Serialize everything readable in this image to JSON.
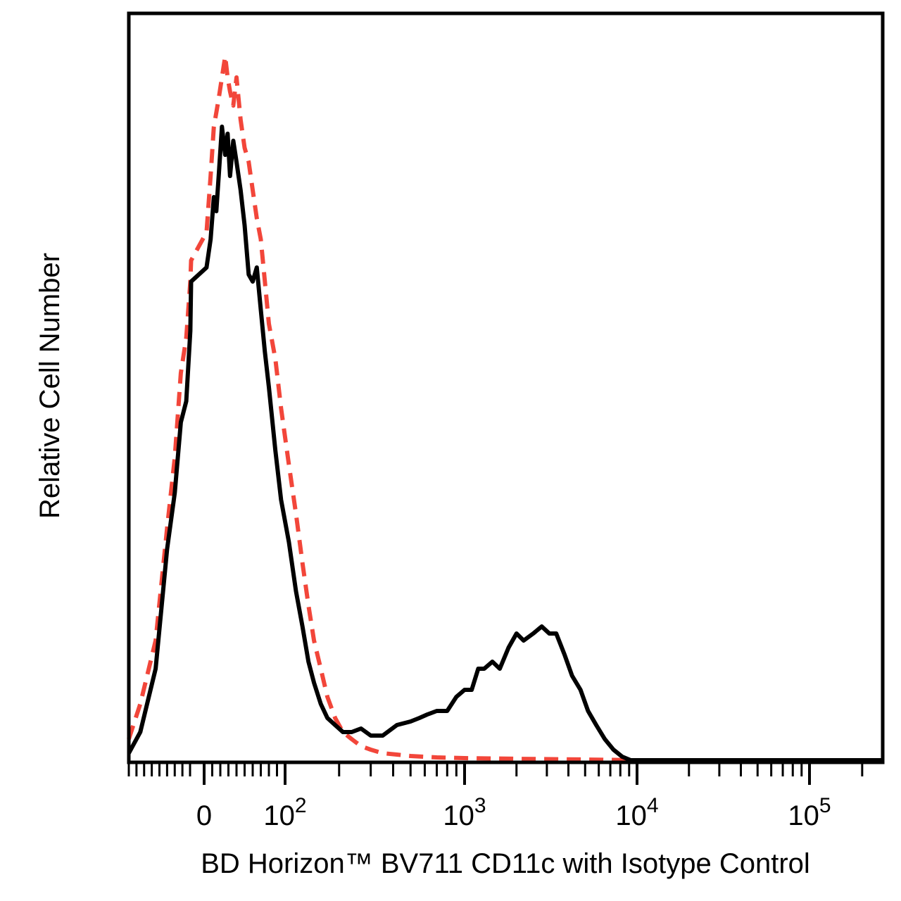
{
  "chart_data": {
    "type": "line",
    "xlabel": "BD Horizon™ BV711 CD11c with Isotype Control",
    "ylabel": "Relative Cell Number",
    "x_scale": "biexponential",
    "xlim": [
      -90,
      262000
    ],
    "ylim": [
      0,
      1
    ],
    "grid": false,
    "legend": "none",
    "x_tick_labels": [
      {
        "value": 0,
        "base": "0",
        "exp": ""
      },
      {
        "value": 100,
        "base": "10",
        "exp": "2"
      },
      {
        "value": 1000,
        "base": "10",
        "exp": "3"
      },
      {
        "value": 10000,
        "base": "10",
        "exp": "4"
      },
      {
        "value": 100000,
        "base": "10",
        "exp": "5"
      }
    ],
    "series": [
      {
        "style": "solid",
        "color": "#000000",
        "x": [
          -90,
          -75,
          -55,
          -40,
          -30,
          -22,
          -15,
          -8,
          -2,
          3,
          8,
          12,
          15,
          18,
          22,
          26,
          29,
          32,
          36,
          40,
          45,
          50,
          55,
          60,
          65,
          70,
          75,
          80,
          88,
          95,
          105,
          115,
          125,
          135,
          145,
          158,
          172,
          190,
          210,
          235,
          265,
          300,
          350,
          420,
          500,
          560,
          620,
          700,
          800,
          900,
          1000,
          1100,
          1200,
          1300,
          1450,
          1600,
          1800,
          2000,
          2200,
          2500,
          2800,
          3100,
          3400,
          3800,
          4200,
          4700,
          5200,
          5800,
          6500,
          7300,
          8200,
          9200,
          10500,
          12000,
          14000,
          17000,
          25000,
          60000,
          262000
        ],
        "y": [
          0.01,
          0.04,
          0.13,
          0.3,
          0.38,
          0.48,
          0.51,
          0.61,
          0.68,
          0.7,
          0.74,
          0.8,
          0.78,
          0.83,
          0.9,
          0.86,
          0.89,
          0.83,
          0.88,
          0.85,
          0.81,
          0.76,
          0.69,
          0.68,
          0.7,
          0.64,
          0.58,
          0.53,
          0.44,
          0.37,
          0.31,
          0.24,
          0.19,
          0.14,
          0.11,
          0.08,
          0.06,
          0.05,
          0.04,
          0.04,
          0.045,
          0.035,
          0.035,
          0.05,
          0.055,
          0.06,
          0.065,
          0.07,
          0.07,
          0.09,
          0.1,
          0.1,
          0.13,
          0.13,
          0.14,
          0.13,
          0.16,
          0.18,
          0.17,
          0.18,
          0.19,
          0.18,
          0.18,
          0.15,
          0.12,
          0.1,
          0.07,
          0.05,
          0.03,
          0.015,
          0.005,
          0.0,
          0.0,
          0.0,
          0.0,
          0.0,
          0.0,
          0.0,
          0.0
        ]
      },
      {
        "style": "dashed",
        "color": "#f2463a",
        "x": [
          -90,
          -75,
          -55,
          -40,
          -30,
          -22,
          -15,
          -8,
          -2,
          3,
          8,
          12,
          15,
          18,
          22,
          26,
          29,
          32,
          36,
          40,
          45,
          50,
          55,
          60,
          65,
          70,
          75,
          80,
          88,
          95,
          105,
          115,
          125,
          135,
          145,
          158,
          172,
          190,
          210,
          235,
          265,
          300,
          350,
          420,
          500,
          700,
          1000,
          2000,
          5000,
          10000,
          20000,
          262000
        ],
        "y": [
          0.03,
          0.08,
          0.17,
          0.33,
          0.43,
          0.55,
          0.6,
          0.68,
          0.71,
          0.75,
          0.83,
          0.9,
          0.92,
          0.94,
          0.97,
          1.0,
          0.97,
          0.95,
          0.93,
          0.97,
          0.91,
          0.87,
          0.85,
          0.81,
          0.77,
          0.74,
          0.68,
          0.62,
          0.57,
          0.5,
          0.42,
          0.35,
          0.28,
          0.22,
          0.17,
          0.13,
          0.09,
          0.06,
          0.04,
          0.03,
          0.02,
          0.015,
          0.01,
          0.008,
          0.006,
          0.004,
          0.003,
          0.002,
          0.001,
          0.0,
          0.0,
          0.0
        ]
      }
    ]
  }
}
